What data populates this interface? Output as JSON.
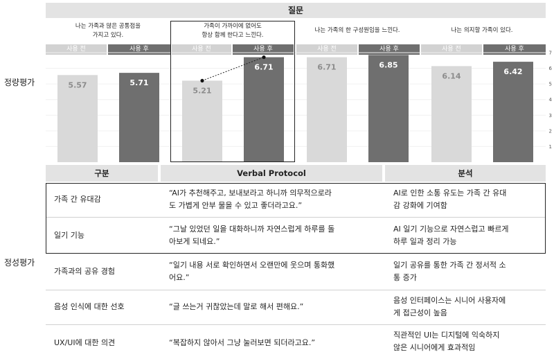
{
  "sections": {
    "quantitative": "정량평가",
    "qualitative": "정성평가"
  },
  "header": {
    "question": "질문"
  },
  "questions": [
    {
      "text_line1": "나는 가족과 많은 공통점을",
      "text_line2": "가지고 있다.",
      "before_label": "사용 전",
      "after_label": "사용 후"
    },
    {
      "text_line1": "가족이 가까이에 없어도",
      "text_line2": "항상 함께 한다고 느낀다.",
      "before_label": "사용 전",
      "after_label": "사용 후"
    },
    {
      "text_line1": "나는 가족의 한 구성원임을 느낀다.",
      "text_line2": "",
      "before_label": "사용 전",
      "after_label": "사용 후"
    },
    {
      "text_line1": "나는 의지할 가족이 있다.",
      "text_line2": "",
      "before_label": "사용 전",
      "after_label": "사용 후"
    }
  ],
  "chart_data": {
    "type": "bar",
    "categories": [
      "나는 가족과 많은 공통점을 가지고 있다.",
      "가족이 가까이에 없어도 항상 함께 한다고 느낀다.",
      "나는 가족의 한 구성원임을 느낀다.",
      "나는 의지할 가족이 있다."
    ],
    "series": [
      {
        "name": "사용 전",
        "values": [
          5.57,
          5.21,
          6.71,
          6.14
        ]
      },
      {
        "name": "사용 후",
        "values": [
          5.71,
          6.71,
          6.85,
          6.42
        ]
      }
    ],
    "value_labels": {
      "before": [
        "5.57",
        "5.21",
        "6.71",
        "6.14"
      ],
      "after": [
        "5.71",
        "6.71",
        "6.85",
        "6.42"
      ]
    },
    "ylim": [
      0,
      7
    ],
    "yticks": [
      "1",
      "2",
      "3",
      "4",
      "5",
      "6",
      "7"
    ],
    "highlight_category": 1,
    "colors": {
      "before": "#d9d9d9",
      "after": "#6f6f6f",
      "before_label": "#8c8c8c",
      "after_label": "#ffffff"
    }
  },
  "table": {
    "headers": [
      "구분",
      "Verbal Protocol",
      "분석"
    ],
    "rows": [
      {
        "category": "가족 간 유대감",
        "quote": [
          "“AI가 추천해주고, 보내보라고 하니까 의무적으로라",
          "도 가볍게 안부 물을 수 있고 좋더라고요.”"
        ],
        "analysis": [
          "AI로 인한 소통 유도는 가족 간 유대",
          "감 강화에 기여함"
        ]
      },
      {
        "category": "일기 기능",
        "quote": [
          "“그날 있었던 일을 대화하니까 자연스럽게 하루를 돌",
          "아보게 되네요.”"
        ],
        "analysis": [
          "AI 일기 기능으로 자연스럽고 빠르게",
          "하루 일과 정리 가능"
        ]
      },
      {
        "category": "가족과의 공유 경험",
        "quote": [
          "“일기 내용 서로 확인하면서 오랜만에 웃으며 통화했",
          "어요.”"
        ],
        "analysis": [
          "일기 공유를 통한 가족 간 정서적 소",
          "통 증가"
        ]
      },
      {
        "category": "음성 인식에 대한 선호",
        "quote": [
          "“글 쓰는거 귀찮았는데 말로 해서 편해요.”",
          ""
        ],
        "analysis": [
          "음성 인터페이스는 시니어 사용자에",
          "게 접근성이 높음"
        ]
      },
      {
        "category": "UX/UI에 대한 의견",
        "quote": [
          "“복잡하지 않아서 그냥 눌러보면 되더라고요.”",
          ""
        ],
        "analysis": [
          "직관적인 UI는 디지털에 익숙하지",
          "않은 시니어에게 효과적임"
        ]
      }
    ]
  }
}
